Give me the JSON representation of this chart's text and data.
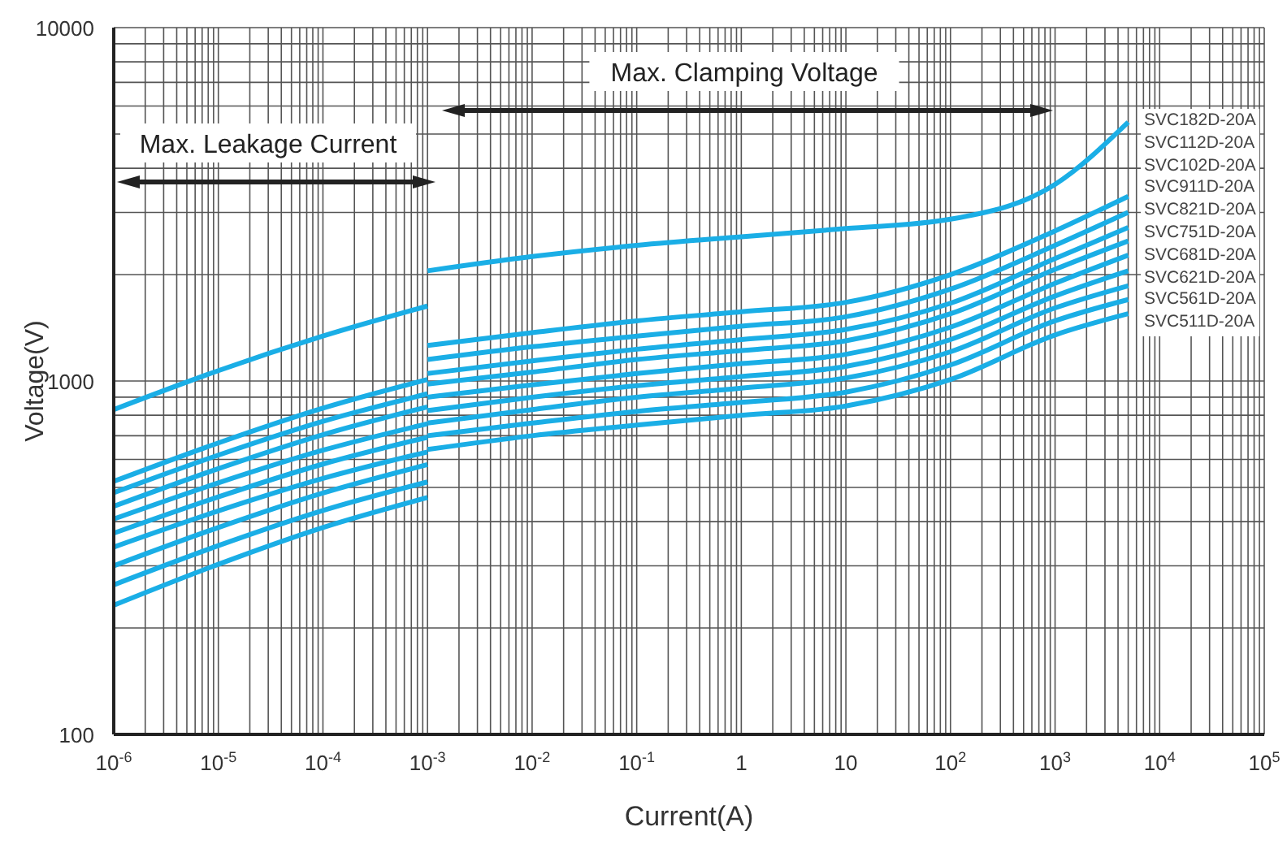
{
  "chart_data": {
    "type": "line",
    "xlabel": "Current(A)",
    "ylabel": "Voltage(V)",
    "log": "xy",
    "grid": true,
    "legend": false,
    "marker": "none",
    "line_style": "solid",
    "annotations": [
      "Max. Leakage Current",
      "Max. Clamping Voltage"
    ],
    "x": [
      1e-06,
      1e-05,
      0.0001,
      0.001,
      0.001,
      0.01,
      0.1,
      1,
      10,
      100,
      1000,
      5000
    ],
    "xlim": [
      1e-06,
      100000
    ],
    "xticks": [
      {
        "value": 1e-06,
        "label": "10$^{-6}$"
      },
      {
        "value": 2e-06,
        "label": null
      },
      {
        "value": 3e-06,
        "label": null
      },
      {
        "value": 4e-06,
        "label": null
      },
      {
        "value": 5e-06,
        "label": null
      },
      {
        "value": 6e-06,
        "label": null
      },
      {
        "value": 7e-06,
        "label": null
      },
      {
        "value": 8e-06,
        "label": null
      },
      {
        "value": 9e-06,
        "label": null
      },
      {
        "value": 1e-05,
        "label": "10$^{-5}$"
      },
      {
        "value": 2e-05,
        "label": null
      },
      {
        "value": 3e-05,
        "label": null
      },
      {
        "value": 4e-05,
        "label": null
      },
      {
        "value": 5e-05,
        "label": null
      },
      {
        "value": 6e-05,
        "label": null
      },
      {
        "value": 7e-05,
        "label": null
      },
      {
        "value": 8e-05,
        "label": null
      },
      {
        "value": 9e-05,
        "label": null
      },
      {
        "value": 0.0001,
        "label": "10$^{-4}$"
      },
      {
        "value": 0.0002,
        "label": null
      },
      {
        "value": 0.0003,
        "label": null
      },
      {
        "value": 0.0004,
        "label": null
      },
      {
        "value": 0.0005,
        "label": null
      },
      {
        "value": 0.0006,
        "label": null
      },
      {
        "value": 0.0007,
        "label": null
      },
      {
        "value": 0.0008,
        "label": null
      },
      {
        "value": 0.0009,
        "label": null
      },
      {
        "value": 0.001,
        "label": "10$^{-3}$"
      },
      {
        "value": 0.002,
        "label": null
      },
      {
        "value": 0.003,
        "label": null
      },
      {
        "value": 0.004,
        "label": null
      },
      {
        "value": 0.005,
        "label": null
      },
      {
        "value": 0.006,
        "label": null
      },
      {
        "value": 0.007,
        "label": null
      },
      {
        "value": 0.008,
        "label": null
      },
      {
        "value": 0.009,
        "label": null
      },
      {
        "value": 0.01,
        "label": "10$^{-2}$"
      },
      {
        "value": 0.02,
        "label": null
      },
      {
        "value": 0.03,
        "label": null
      },
      {
        "value": 0.04,
        "label": null
      },
      {
        "value": 0.05,
        "label": null
      },
      {
        "value": 0.06,
        "label": null
      },
      {
        "value": 0.07,
        "label": null
      },
      {
        "value": 0.08,
        "label": null
      },
      {
        "value": 0.09,
        "label": null
      },
      {
        "value": 0.1,
        "label": "10$^{-1}$"
      },
      {
        "value": 0.2,
        "label": null
      },
      {
        "value": 0.3,
        "label": null
      },
      {
        "value": 0.4,
        "label": null
      },
      {
        "value": 0.5,
        "label": null
      },
      {
        "value": 0.6,
        "label": null
      },
      {
        "value": 0.7,
        "label": null
      },
      {
        "value": 0.8,
        "label": null
      },
      {
        "value": 0.9,
        "label": null
      },
      1,
      {
        "value": 2,
        "label": null
      },
      {
        "value": 3,
        "label": null
      },
      {
        "value": 4,
        "label": null
      },
      {
        "value": 5,
        "label": null
      },
      {
        "value": 6,
        "label": null
      },
      {
        "value": 7,
        "label": null
      },
      {
        "value": 8,
        "label": null
      },
      {
        "value": 9,
        "label": null
      },
      10,
      {
        "value": 20,
        "label": null
      },
      {
        "value": 30,
        "label": null
      },
      {
        "value": 40,
        "label": null
      },
      {
        "value": 50,
        "label": null
      },
      {
        "value": 60,
        "label": null
      },
      {
        "value": 70,
        "label": null
      },
      {
        "value": 80,
        "label": null
      },
      {
        "value": 90,
        "label": null
      },
      {
        "value": 100,
        "label": "10$^{2}$"
      },
      {
        "value": 200,
        "label": null
      },
      {
        "value": 300,
        "label": null
      },
      {
        "value": 400,
        "label": null
      },
      {
        "value": 500,
        "label": null
      },
      {
        "value": 600,
        "label": null
      },
      {
        "value": 700,
        "label": null
      },
      {
        "value": 800,
        "label": null
      },
      {
        "value": 900,
        "label": null
      },
      {
        "value": 1000,
        "label": "10$^{3}$"
      },
      {
        "value": 2000,
        "label": null
      },
      {
        "value": 3000,
        "label": null
      },
      {
        "value": 4000,
        "label": null
      },
      {
        "value": 5000,
        "label": null
      },
      {
        "value": 6000,
        "label": null
      },
      {
        "value": 7000,
        "label": null
      },
      {
        "value": 8000,
        "label": null
      },
      {
        "value": 9000,
        "label": null
      },
      {
        "value": 10000,
        "label": "10$^{4}$"
      },
      {
        "value": 20000,
        "label": null
      },
      {
        "value": 30000,
        "label": null
      },
      {
        "value": 40000,
        "label": null
      },
      {
        "value": 50000,
        "label": null
      },
      {
        "value": 60000,
        "label": null
      },
      {
        "value": 70000,
        "label": null
      },
      {
        "value": 80000,
        "label": null
      },
      {
        "value": 90000,
        "label": null
      },
      {
        "value": 100000,
        "label": "10$^{5}$"
      }
    ],
    "ylim": [
      100,
      10000
    ],
    "yticks": [
      100,
      {
        "value": 200,
        "label": null
      },
      {
        "value": 300,
        "label": null
      },
      {
        "value": 400,
        "label": null
      },
      {
        "value": 500,
        "label": null
      },
      {
        "value": 600,
        "label": null
      },
      {
        "value": 700,
        "label": null
      },
      {
        "value": 800,
        "label": null
      },
      {
        "value": 900,
        "label": null
      },
      1000,
      {
        "value": 2000,
        "label": null
      },
      {
        "value": 3000,
        "label": null
      },
      {
        "value": 4000,
        "label": null
      },
      {
        "value": 5000,
        "label": null
      },
      {
        "value": 6000,
        "label": null
      },
      {
        "value": 7000,
        "label": null
      },
      {
        "value": 8000,
        "label": null
      },
      {
        "value": 9000,
        "label": null
      },
      10000
    ],
    "series": [
      {
        "name": "SVC182D-20A",
        "color": "#1aaee6",
        "values": [
          830,
          1070,
          1340,
          1630,
          2050,
          2250,
          2420,
          2560,
          2700,
          2870,
          3600,
          5400
        ]
      },
      {
        "name": "SVC112D-20A",
        "color": "#1aaee6",
        "values": [
          520,
          668,
          838,
          1010,
          1260,
          1370,
          1480,
          1570,
          1670,
          2000,
          2660,
          3330
        ]
      },
      {
        "name": "SVC102D-20A",
        "color": "#1aaee6",
        "values": [
          483,
          617,
          769,
          920,
          1150,
          1250,
          1340,
          1430,
          1520,
          1820,
          2420,
          3000
        ]
      },
      {
        "name": "SVC911D-20A",
        "color": "#1aaee6",
        "values": [
          442,
          565,
          705,
          845,
          1050,
          1140,
          1230,
          1310,
          1400,
          1660,
          2220,
          2720
        ]
      },
      {
        "name": "SVC821D-20A",
        "color": "#1aaee6",
        "values": [
          407,
          515,
          637,
          757,
          980,
          1060,
          1150,
          1220,
          1300,
          1550,
          2070,
          2490
        ]
      },
      {
        "name": "SVC751D-20A",
        "color": "#1aaee6",
        "values": [
          371,
          470,
          582,
          693,
          900,
          975,
          1050,
          1120,
          1190,
          1420,
          1890,
          2270
        ]
      },
      {
        "name": "SVC681D-20A",
        "color": "#1aaee6",
        "values": [
          339,
          429,
          530,
          630,
          825,
          900,
          970,
          1030,
          1100,
          1310,
          1740,
          2050
        ]
      },
      {
        "name": "SVC621D-20A",
        "color": "#1aaee6",
        "values": [
          300,
          385,
          482,
          580,
          760,
          830,
          900,
          955,
          1020,
          1210,
          1610,
          1860
        ]
      },
      {
        "name": "SVC561D-20A",
        "color": "#1aaee6",
        "values": [
          265,
          342,
          430,
          518,
          700,
          760,
          820,
          870,
          930,
          1110,
          1480,
          1700
        ]
      },
      {
        "name": "SVC511D-20A",
        "color": "#1aaee6",
        "values": [
          232,
          303,
          385,
          468,
          640,
          700,
          750,
          800,
          850,
          1010,
          1350,
          1550
        ]
      }
    ]
  }
}
